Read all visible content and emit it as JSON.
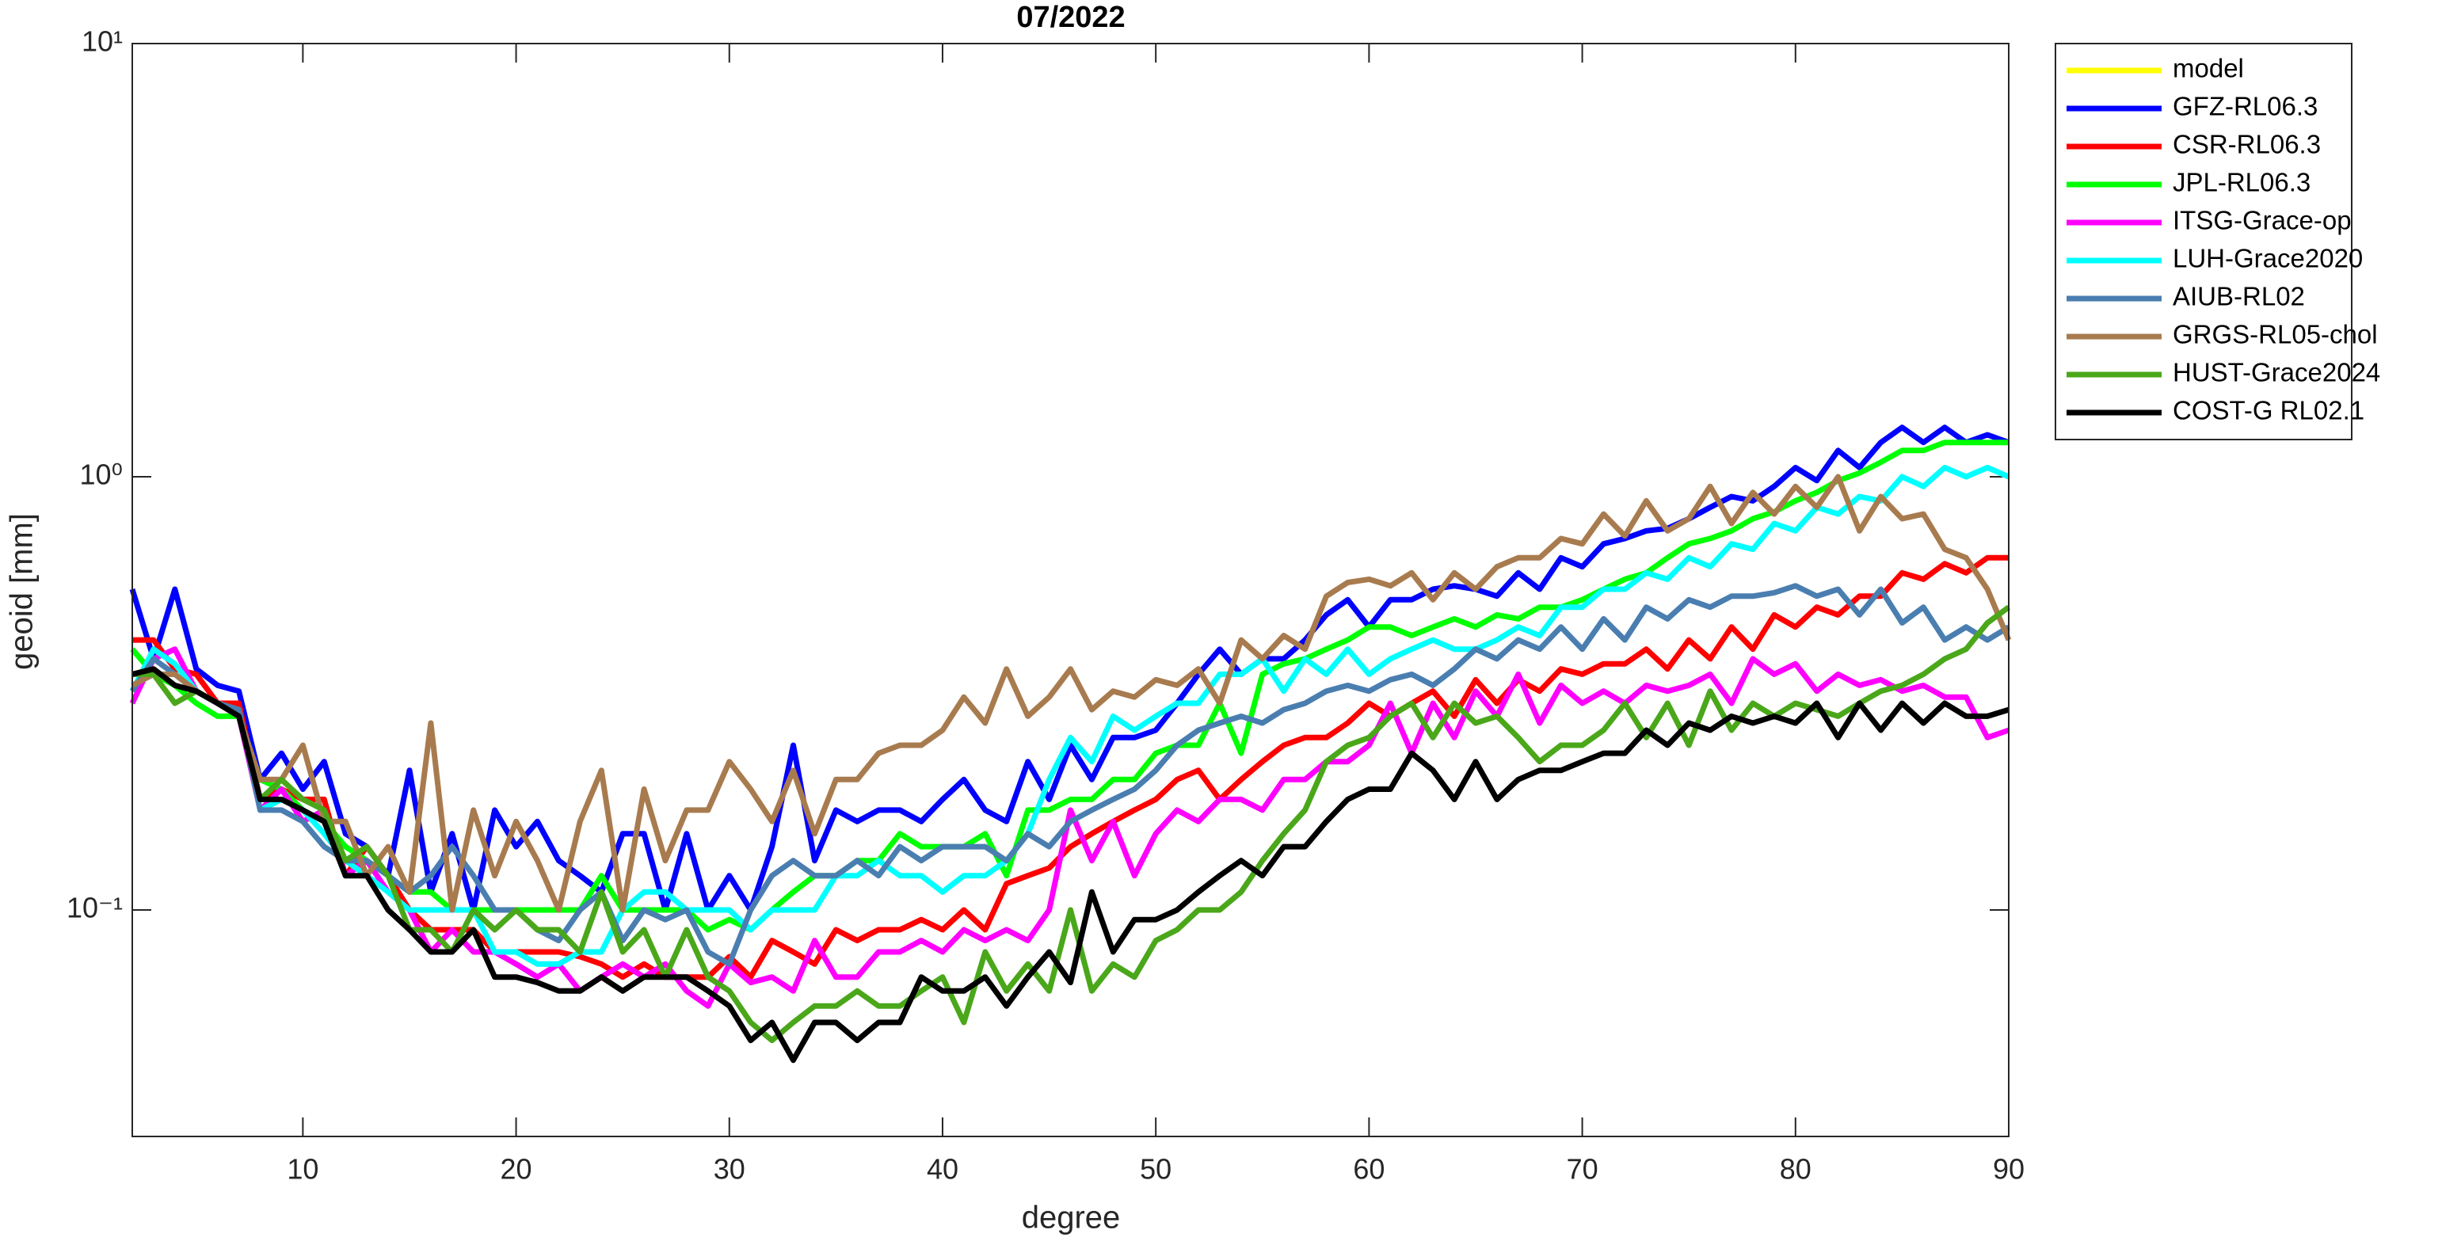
{
  "chart_data": {
    "type": "line",
    "title": "07/2022",
    "xlabel": "degree",
    "ylabel": "geoid [mm]",
    "x": [
      2,
      3,
      4,
      5,
      6,
      7,
      8,
      9,
      10,
      11,
      12,
      13,
      14,
      15,
      16,
      17,
      18,
      19,
      20,
      21,
      22,
      23,
      24,
      25,
      26,
      27,
      28,
      29,
      30,
      31,
      32,
      33,
      34,
      35,
      36,
      37,
      38,
      39,
      40,
      41,
      42,
      43,
      44,
      45,
      46,
      47,
      48,
      49,
      50,
      51,
      52,
      53,
      54,
      55,
      56,
      57,
      58,
      59,
      60,
      61,
      62,
      63,
      64,
      65,
      66,
      67,
      68,
      69,
      70,
      71,
      72,
      73,
      74,
      75,
      76,
      77,
      78,
      79,
      80,
      81,
      82,
      83,
      84,
      85,
      86,
      87,
      88,
      89,
      90
    ],
    "xlim": [
      2,
      90
    ],
    "xticks": [
      10,
      20,
      30,
      40,
      50,
      60,
      70,
      80,
      90
    ],
    "ylim": [
      0.03,
      10
    ],
    "yscale": "log",
    "yticks": [
      {
        "value": 0.1,
        "label": "10⁻¹"
      },
      {
        "value": 1,
        "label": "10⁰"
      },
      {
        "value": 10,
        "label": "10¹"
      }
    ],
    "legend_location": "northeast outside",
    "series": [
      {
        "name": "model",
        "color": "#ffff00",
        "values": [
          null,
          null,
          null,
          null,
          null,
          null,
          null,
          null,
          null,
          null,
          null,
          null,
          null,
          null,
          null,
          null,
          null,
          null,
          null,
          null,
          null,
          null,
          null,
          null,
          null,
          null,
          null,
          null,
          null,
          null,
          null,
          null,
          null,
          null,
          null,
          null,
          null,
          null,
          null,
          null,
          null,
          null,
          null,
          null,
          null,
          null,
          null,
          null,
          null,
          null,
          null,
          null,
          null,
          null,
          null,
          null,
          null,
          null,
          null,
          null,
          null,
          null,
          null,
          null,
          null,
          null,
          null,
          null,
          null,
          null,
          null,
          null,
          null,
          null,
          null,
          null,
          null,
          null,
          null,
          null,
          null,
          null,
          null,
          null,
          null,
          null,
          null,
          null,
          null
        ]
      },
      {
        "name": "GFZ-RL06.3",
        "color": "#0000ff",
        "values": [
          0.55,
          0.38,
          0.55,
          0.36,
          0.33,
          0.32,
          0.2,
          0.23,
          0.19,
          0.22,
          0.15,
          0.14,
          0.12,
          0.21,
          0.11,
          0.15,
          0.1,
          0.17,
          0.14,
          0.16,
          0.13,
          0.12,
          0.11,
          0.15,
          0.15,
          0.1,
          0.15,
          0.1,
          0.12,
          0.1,
          0.14,
          0.24,
          0.13,
          0.17,
          0.16,
          0.17,
          0.17,
          0.16,
          0.18,
          0.2,
          0.17,
          0.16,
          0.22,
          0.18,
          0.24,
          0.2,
          0.25,
          0.25,
          0.26,
          0.3,
          0.35,
          0.4,
          0.35,
          0.38,
          0.38,
          0.42,
          0.48,
          0.52,
          0.45,
          0.52,
          0.52,
          0.55,
          0.56,
          0.55,
          0.53,
          0.6,
          0.55,
          0.65,
          0.62,
          0.7,
          0.72,
          0.75,
          0.76,
          0.8,
          0.85,
          0.9,
          0.88,
          0.95,
          1.05,
          0.98,
          1.15,
          1.05,
          1.2,
          1.3,
          1.2,
          1.3,
          1.2,
          1.25,
          1.2
        ]
      },
      {
        "name": "CSR-RL06.3",
        "color": "#ff0000",
        "values": [
          0.42,
          0.42,
          0.36,
          0.35,
          0.3,
          0.3,
          0.18,
          0.19,
          0.18,
          0.18,
          0.12,
          0.14,
          0.12,
          0.1,
          0.09,
          0.09,
          0.09,
          0.08,
          0.08,
          0.08,
          0.08,
          0.078,
          0.075,
          0.07,
          0.075,
          0.07,
          0.07,
          0.07,
          0.078,
          0.07,
          0.085,
          0.08,
          0.075,
          0.09,
          0.085,
          0.09,
          0.09,
          0.095,
          0.09,
          0.1,
          0.09,
          0.115,
          0.12,
          0.125,
          0.14,
          0.15,
          0.16,
          0.17,
          0.18,
          0.2,
          0.21,
          0.18,
          0.2,
          0.22,
          0.24,
          0.25,
          0.25,
          0.27,
          0.3,
          0.28,
          0.3,
          0.32,
          0.28,
          0.34,
          0.3,
          0.34,
          0.32,
          0.36,
          0.35,
          0.37,
          0.37,
          0.4,
          0.36,
          0.42,
          0.38,
          0.45,
          0.4,
          0.48,
          0.45,
          0.5,
          0.48,
          0.53,
          0.53,
          0.6,
          0.58,
          0.63,
          0.6,
          0.65,
          0.65
        ]
      },
      {
        "name": "JPL-RL06.3",
        "color": "#00ff00",
        "values": [
          0.4,
          0.35,
          0.33,
          0.3,
          0.28,
          0.28,
          0.2,
          0.19,
          0.17,
          0.16,
          0.14,
          0.13,
          0.12,
          0.11,
          0.11,
          0.1,
          0.1,
          0.1,
          0.1,
          0.1,
          0.1,
          0.1,
          0.12,
          0.1,
          0.1,
          0.1,
          0.1,
          0.09,
          0.095,
          0.09,
          0.1,
          0.11,
          0.12,
          0.12,
          0.13,
          0.13,
          0.15,
          0.14,
          0.14,
          0.14,
          0.15,
          0.12,
          0.17,
          0.17,
          0.18,
          0.18,
          0.2,
          0.2,
          0.23,
          0.24,
          0.24,
          0.3,
          0.23,
          0.35,
          0.37,
          0.38,
          0.4,
          0.42,
          0.45,
          0.45,
          0.43,
          0.45,
          0.47,
          0.45,
          0.48,
          0.47,
          0.5,
          0.5,
          0.52,
          0.55,
          0.58,
          0.6,
          0.65,
          0.7,
          0.72,
          0.75,
          0.8,
          0.83,
          0.88,
          0.92,
          0.98,
          1.02,
          1.08,
          1.15,
          1.15,
          1.2,
          1.2,
          1.2,
          1.2
        ]
      },
      {
        "name": "ITSG-Grace-op",
        "color": "#ff00ff",
        "values": [
          0.3,
          0.38,
          0.4,
          0.32,
          0.3,
          0.28,
          0.17,
          0.19,
          0.16,
          0.17,
          0.12,
          0.13,
          0.11,
          0.1,
          0.08,
          0.09,
          0.08,
          0.08,
          0.075,
          0.07,
          0.075,
          0.065,
          0.07,
          0.075,
          0.07,
          0.075,
          0.065,
          0.06,
          0.075,
          0.068,
          0.07,
          0.065,
          0.085,
          0.07,
          0.07,
          0.08,
          0.08,
          0.085,
          0.08,
          0.09,
          0.085,
          0.09,
          0.085,
          0.1,
          0.17,
          0.13,
          0.16,
          0.12,
          0.15,
          0.17,
          0.16,
          0.18,
          0.18,
          0.17,
          0.2,
          0.2,
          0.22,
          0.22,
          0.24,
          0.3,
          0.23,
          0.3,
          0.25,
          0.32,
          0.28,
          0.35,
          0.27,
          0.33,
          0.3,
          0.32,
          0.3,
          0.33,
          0.32,
          0.33,
          0.35,
          0.3,
          0.38,
          0.35,
          0.37,
          0.32,
          0.35,
          0.33,
          0.34,
          0.32,
          0.33,
          0.31,
          0.31,
          0.25,
          0.26
        ]
      },
      {
        "name": "LUH-Grace2020",
        "color": "#00ffff",
        "values": [
          0.32,
          0.4,
          0.37,
          0.32,
          0.3,
          0.29,
          0.17,
          0.18,
          0.17,
          0.15,
          0.13,
          0.12,
          0.11,
          0.1,
          0.1,
          0.1,
          0.1,
          0.08,
          0.08,
          0.075,
          0.075,
          0.08,
          0.08,
          0.1,
          0.11,
          0.11,
          0.1,
          0.1,
          0.1,
          0.09,
          0.1,
          0.1,
          0.1,
          0.12,
          0.12,
          0.13,
          0.12,
          0.12,
          0.11,
          0.12,
          0.12,
          0.13,
          0.15,
          0.2,
          0.25,
          0.22,
          0.28,
          0.26,
          0.28,
          0.3,
          0.3,
          0.35,
          0.35,
          0.38,
          0.32,
          0.38,
          0.35,
          0.4,
          0.35,
          0.38,
          0.4,
          0.42,
          0.4,
          0.4,
          0.42,
          0.45,
          0.43,
          0.5,
          0.5,
          0.55,
          0.55,
          0.6,
          0.58,
          0.65,
          0.62,
          0.7,
          0.68,
          0.78,
          0.75,
          0.85,
          0.82,
          0.9,
          0.88,
          1.0,
          0.95,
          1.05,
          1.0,
          1.05,
          1.0
        ]
      },
      {
        "name": "AIUB-RL02",
        "color": "#4a7eb0",
        "values": [
          0.32,
          0.38,
          0.35,
          0.32,
          0.3,
          0.29,
          0.17,
          0.17,
          0.16,
          0.14,
          0.13,
          0.13,
          0.12,
          0.11,
          0.12,
          0.14,
          0.12,
          0.1,
          0.1,
          0.09,
          0.085,
          0.1,
          0.11,
          0.085,
          0.1,
          0.095,
          0.1,
          0.08,
          0.075,
          0.1,
          0.12,
          0.13,
          0.12,
          0.12,
          0.13,
          0.12,
          0.14,
          0.13,
          0.14,
          0.14,
          0.14,
          0.13,
          0.15,
          0.14,
          0.16,
          0.17,
          0.18,
          0.19,
          0.21,
          0.24,
          0.26,
          0.27,
          0.28,
          0.27,
          0.29,
          0.3,
          0.32,
          0.33,
          0.32,
          0.34,
          0.35,
          0.33,
          0.36,
          0.4,
          0.38,
          0.42,
          0.4,
          0.45,
          0.4,
          0.47,
          0.42,
          0.5,
          0.47,
          0.52,
          0.5,
          0.53,
          0.53,
          0.54,
          0.56,
          0.53,
          0.55,
          0.48,
          0.55,
          0.46,
          0.5,
          0.42,
          0.45,
          0.42,
          0.45
        ]
      },
      {
        "name": "GRGS-RL05-chol",
        "color": "#a87b4f",
        "values": [
          0.33,
          0.35,
          0.35,
          0.32,
          0.3,
          0.28,
          0.2,
          0.2,
          0.24,
          0.16,
          0.16,
          0.12,
          0.14,
          0.11,
          0.27,
          0.1,
          0.17,
          0.12,
          0.16,
          0.13,
          0.1,
          0.16,
          0.21,
          0.1,
          0.19,
          0.13,
          0.17,
          0.17,
          0.22,
          0.19,
          0.16,
          0.21,
          0.15,
          0.2,
          0.2,
          0.23,
          0.24,
          0.24,
          0.26,
          0.31,
          0.27,
          0.36,
          0.28,
          0.31,
          0.36,
          0.29,
          0.32,
          0.31,
          0.34,
          0.33,
          0.36,
          0.3,
          0.42,
          0.38,
          0.43,
          0.4,
          0.53,
          0.57,
          0.58,
          0.56,
          0.6,
          0.52,
          0.6,
          0.55,
          0.62,
          0.65,
          0.65,
          0.72,
          0.7,
          0.82,
          0.73,
          0.88,
          0.75,
          0.8,
          0.95,
          0.78,
          0.92,
          0.82,
          0.95,
          0.85,
          1.0,
          0.75,
          0.9,
          0.8,
          0.82,
          0.68,
          0.65,
          0.55,
          0.42
        ]
      },
      {
        "name": "HUST-Grace2024",
        "color": "#4aa71a",
        "values": [
          0.35,
          0.35,
          0.3,
          0.32,
          0.3,
          0.28,
          0.18,
          0.2,
          0.18,
          0.17,
          0.13,
          0.14,
          0.12,
          0.09,
          0.09,
          0.08,
          0.1,
          0.09,
          0.1,
          0.09,
          0.09,
          0.08,
          0.11,
          0.08,
          0.09,
          0.07,
          0.09,
          0.07,
          0.065,
          0.055,
          0.05,
          0.055,
          0.06,
          0.06,
          0.065,
          0.06,
          0.06,
          0.065,
          0.07,
          0.055,
          0.08,
          0.065,
          0.075,
          0.065,
          0.1,
          0.065,
          0.075,
          0.07,
          0.085,
          0.09,
          0.1,
          0.1,
          0.11,
          0.13,
          0.15,
          0.17,
          0.22,
          0.24,
          0.25,
          0.28,
          0.3,
          0.25,
          0.3,
          0.27,
          0.28,
          0.25,
          0.22,
          0.24,
          0.24,
          0.26,
          0.3,
          0.25,
          0.3,
          0.24,
          0.32,
          0.26,
          0.3,
          0.28,
          0.3,
          0.29,
          0.28,
          0.3,
          0.32,
          0.33,
          0.35,
          0.38,
          0.4,
          0.46,
          0.5
        ]
      },
      {
        "name": "COST-G RL02.1",
        "color": "#000000",
        "values": [
          0.35,
          0.36,
          0.33,
          0.32,
          0.3,
          0.28,
          0.18,
          0.18,
          0.17,
          0.16,
          0.12,
          0.12,
          0.1,
          0.09,
          0.08,
          0.08,
          0.09,
          0.07,
          0.07,
          0.068,
          0.065,
          0.065,
          0.07,
          0.065,
          0.07,
          0.07,
          0.07,
          0.065,
          0.06,
          0.05,
          0.055,
          0.045,
          0.055,
          0.055,
          0.05,
          0.055,
          0.055,
          0.07,
          0.065,
          0.065,
          0.07,
          0.06,
          0.07,
          0.08,
          0.068,
          0.11,
          0.08,
          0.095,
          0.095,
          0.1,
          0.11,
          0.12,
          0.13,
          0.12,
          0.14,
          0.14,
          0.16,
          0.18,
          0.19,
          0.19,
          0.23,
          0.21,
          0.18,
          0.22,
          0.18,
          0.2,
          0.21,
          0.21,
          0.22,
          0.23,
          0.23,
          0.26,
          0.24,
          0.27,
          0.26,
          0.28,
          0.27,
          0.28,
          0.27,
          0.3,
          0.25,
          0.3,
          0.26,
          0.3,
          0.27,
          0.3,
          0.28,
          0.28,
          0.29
        ]
      }
    ]
  }
}
